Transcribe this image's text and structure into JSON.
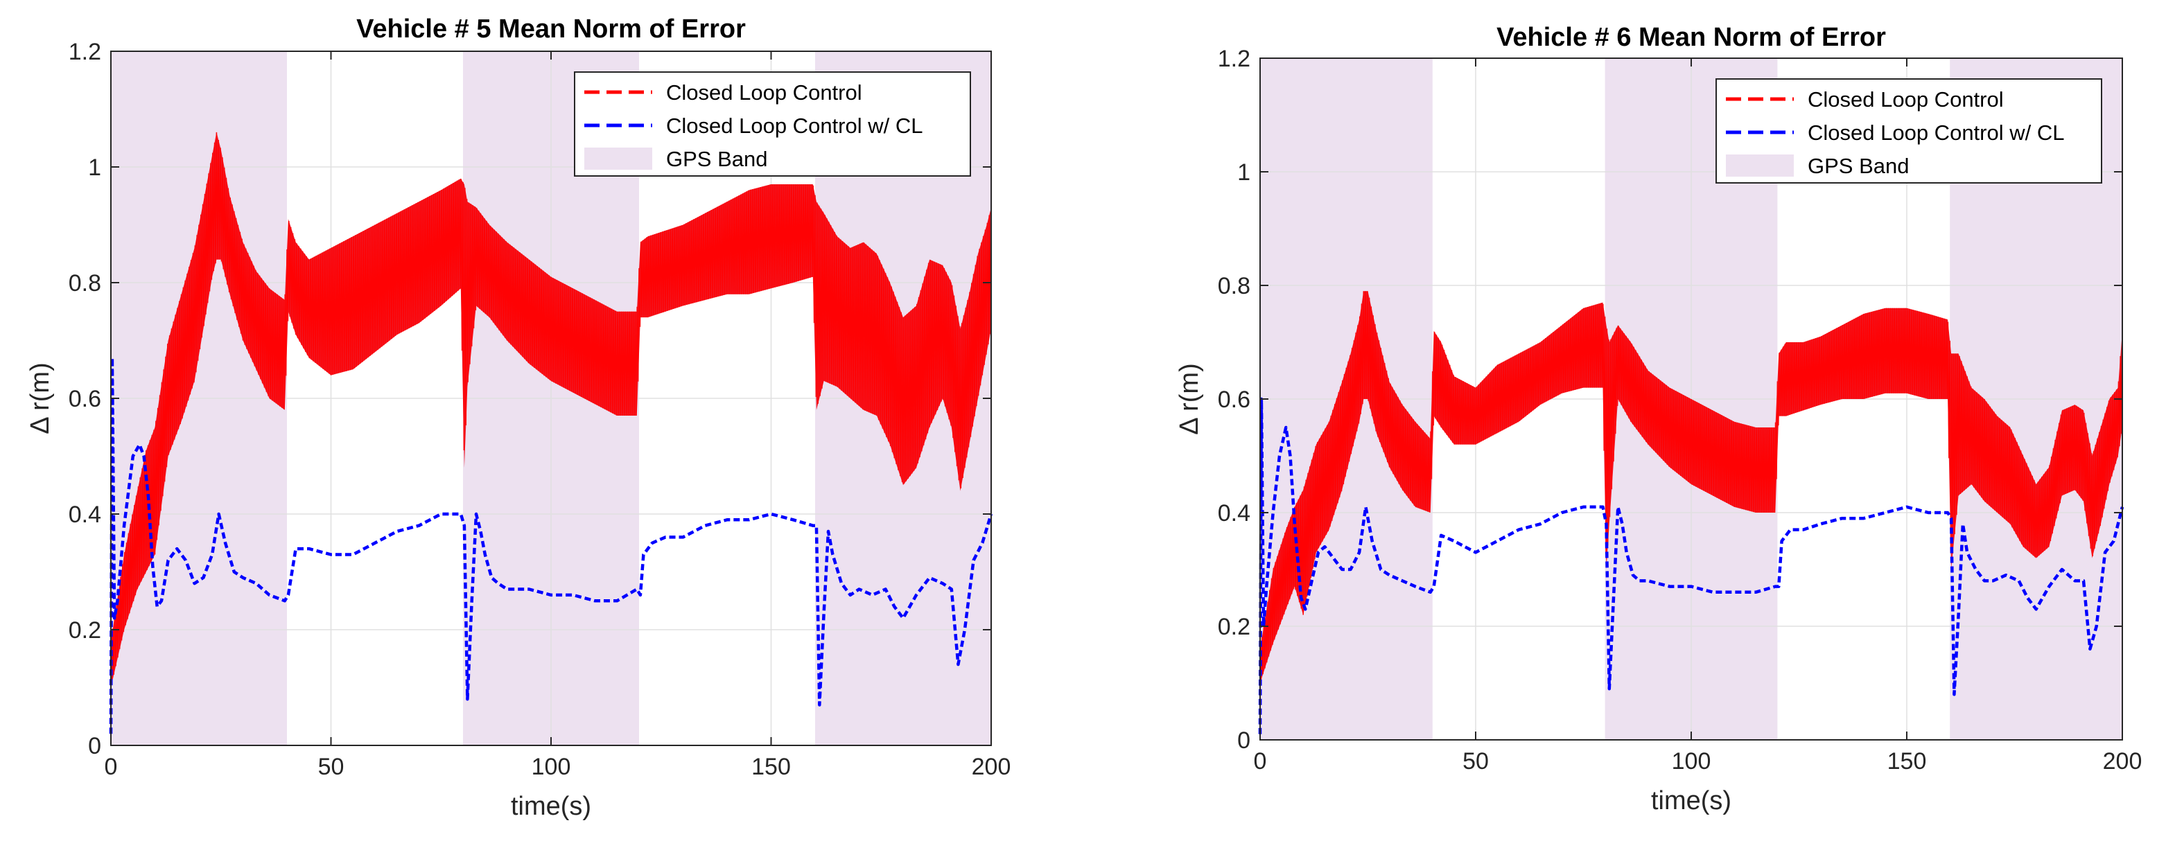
{
  "chart_data": [
    {
      "type": "line",
      "title": "Vehicle # 5 Mean Norm of Error",
      "xlabel": "time(s)",
      "ylabel": "Δ r(m)",
      "xlim": [
        0,
        200
      ],
      "ylim": [
        0,
        1.2
      ],
      "xticks": [
        "0",
        "50",
        "100",
        "150",
        "200"
      ],
      "yticks": [
        "0",
        "0.2",
        "0.4",
        "0.6",
        "0.8",
        "1",
        "1.2"
      ],
      "grid": true,
      "legend_position": "top-right",
      "gps_bands": [
        [
          0,
          40
        ],
        [
          80,
          120
        ],
        [
          160,
          200
        ]
      ],
      "legend": [
        "Closed Loop Control",
        "Closed Loop Control w/ CL",
        "GPS Band"
      ],
      "series": [
        {
          "name": "Closed Loop Control",
          "color": "#ff0000",
          "x": [
            0,
            3,
            6,
            8,
            10,
            13,
            16,
            19,
            21,
            23,
            24,
            25,
            27,
            30,
            33,
            36,
            39.5,
            40.3,
            42,
            45,
            50,
            55,
            60,
            65,
            70,
            75,
            79.5,
            80.3,
            81,
            83,
            86,
            90,
            95,
            100,
            105,
            110,
            115,
            119.5,
            120.3,
            122,
            126,
            130,
            135,
            140,
            145,
            150,
            155,
            159.5,
            160.3,
            162,
            165,
            168,
            171,
            174,
            177,
            180,
            183,
            186,
            189,
            191,
            193,
            195,
            197,
            199,
            200
          ],
          "upper": [
            0.18,
            0.33,
            0.44,
            0.51,
            0.55,
            0.7,
            0.78,
            0.86,
            0.94,
            1.02,
            1.06,
            1.03,
            0.95,
            0.87,
            0.82,
            0.79,
            0.77,
            0.91,
            0.87,
            0.84,
            0.86,
            0.88,
            0.9,
            0.92,
            0.94,
            0.96,
            0.98,
            0.97,
            0.94,
            0.93,
            0.9,
            0.87,
            0.84,
            0.81,
            0.79,
            0.77,
            0.75,
            0.75,
            0.87,
            0.88,
            0.89,
            0.9,
            0.92,
            0.94,
            0.96,
            0.97,
            0.97,
            0.97,
            0.94,
            0.92,
            0.88,
            0.86,
            0.87,
            0.85,
            0.8,
            0.74,
            0.76,
            0.84,
            0.83,
            0.8,
            0.72,
            0.78,
            0.85,
            0.9,
            0.93
          ],
          "lower": [
            0.1,
            0.2,
            0.27,
            0.3,
            0.33,
            0.5,
            0.56,
            0.63,
            0.72,
            0.81,
            0.84,
            0.84,
            0.78,
            0.7,
            0.65,
            0.6,
            0.58,
            0.75,
            0.71,
            0.67,
            0.64,
            0.65,
            0.68,
            0.71,
            0.73,
            0.76,
            0.79,
            0.48,
            0.62,
            0.76,
            0.74,
            0.7,
            0.66,
            0.63,
            0.61,
            0.59,
            0.57,
            0.57,
            0.74,
            0.74,
            0.75,
            0.76,
            0.77,
            0.78,
            0.78,
            0.79,
            0.8,
            0.81,
            0.58,
            0.63,
            0.62,
            0.6,
            0.58,
            0.57,
            0.52,
            0.45,
            0.48,
            0.55,
            0.6,
            0.55,
            0.44,
            0.52,
            0.6,
            0.68,
            0.72
          ]
        },
        {
          "name": "Closed Loop Control w/ CL",
          "color": "#0000ff",
          "x": [
            0,
            0.3,
            0.8,
            1.5,
            3,
            5,
            6.5,
            7.5,
            8.5,
            9.5,
            10.5,
            11.5,
            13,
            15,
            17,
            19,
            21,
            23,
            24.5,
            26,
            28,
            30,
            33,
            36,
            39.5,
            40.3,
            42,
            45,
            50,
            55,
            60,
            65,
            70,
            75,
            79.5,
            80.3,
            81,
            82,
            83,
            84,
            85,
            86.5,
            88,
            90,
            95,
            100,
            105,
            110,
            115,
            119.5,
            120.3,
            121,
            123,
            126,
            130,
            135,
            140,
            145,
            150,
            155,
            159.5,
            160.3,
            161,
            162,
            163,
            164,
            166,
            168,
            170,
            173,
            176,
            178,
            180,
            183,
            186,
            189,
            191,
            192.5,
            194,
            196,
            198,
            200
          ],
          "y": [
            0.02,
            0.67,
            0.22,
            0.25,
            0.38,
            0.5,
            0.52,
            0.5,
            0.43,
            0.31,
            0.24,
            0.25,
            0.32,
            0.34,
            0.32,
            0.28,
            0.29,
            0.33,
            0.4,
            0.35,
            0.3,
            0.29,
            0.28,
            0.26,
            0.25,
            0.26,
            0.34,
            0.34,
            0.33,
            0.33,
            0.35,
            0.37,
            0.38,
            0.4,
            0.4,
            0.38,
            0.08,
            0.25,
            0.4,
            0.37,
            0.33,
            0.29,
            0.28,
            0.27,
            0.27,
            0.26,
            0.26,
            0.25,
            0.25,
            0.27,
            0.26,
            0.33,
            0.35,
            0.36,
            0.36,
            0.38,
            0.39,
            0.39,
            0.4,
            0.39,
            0.38,
            0.38,
            0.07,
            0.23,
            0.37,
            0.33,
            0.28,
            0.26,
            0.27,
            0.26,
            0.27,
            0.24,
            0.22,
            0.26,
            0.29,
            0.28,
            0.27,
            0.14,
            0.2,
            0.32,
            0.35,
            0.4
          ]
        }
      ]
    },
    {
      "type": "line",
      "title": "Vehicle # 6 Mean Norm of Error",
      "xlabel": "time(s)",
      "ylabel": "Δ r(m)",
      "xlim": [
        0,
        200
      ],
      "ylim": [
        0,
        1.2
      ],
      "xticks": [
        "0",
        "50",
        "100",
        "150",
        "200"
      ],
      "yticks": [
        "0",
        "0.2",
        "0.4",
        "0.6",
        "0.8",
        "1",
        "1.2"
      ],
      "grid": true,
      "legend_position": "top-right",
      "gps_bands": [
        [
          0,
          40
        ],
        [
          80,
          120
        ],
        [
          160,
          200
        ]
      ],
      "legend": [
        "Closed Loop Control",
        "Closed Loop Control w/ CL",
        "GPS Band"
      ],
      "series": [
        {
          "name": "Closed Loop Control",
          "color": "#ff0000",
          "x": [
            0,
            3,
            6,
            8,
            10,
            13,
            16,
            19,
            21,
            23,
            24,
            25,
            27,
            30,
            33,
            36,
            39.5,
            40.3,
            42,
            45,
            50,
            55,
            60,
            65,
            70,
            75,
            79.5,
            80.3,
            81,
            83,
            86,
            90,
            95,
            100,
            105,
            110,
            115,
            119.5,
            120.3,
            122,
            126,
            130,
            135,
            140,
            145,
            150,
            155,
            159.5,
            160.3,
            162,
            165,
            168,
            171,
            174,
            177,
            180,
            183,
            186,
            189,
            191,
            193,
            195,
            197,
            199,
            200
          ],
          "upper": [
            0.16,
            0.3,
            0.37,
            0.41,
            0.44,
            0.52,
            0.56,
            0.63,
            0.68,
            0.74,
            0.79,
            0.79,
            0.72,
            0.63,
            0.59,
            0.56,
            0.53,
            0.72,
            0.7,
            0.64,
            0.62,
            0.66,
            0.68,
            0.7,
            0.73,
            0.76,
            0.77,
            0.73,
            0.7,
            0.73,
            0.7,
            0.65,
            0.62,
            0.6,
            0.58,
            0.56,
            0.55,
            0.55,
            0.68,
            0.7,
            0.7,
            0.71,
            0.73,
            0.75,
            0.76,
            0.76,
            0.75,
            0.74,
            0.68,
            0.68,
            0.62,
            0.6,
            0.57,
            0.55,
            0.5,
            0.45,
            0.48,
            0.58,
            0.59,
            0.58,
            0.5,
            0.55,
            0.6,
            0.62,
            0.72
          ],
          "lower": [
            0.1,
            0.17,
            0.23,
            0.27,
            0.22,
            0.33,
            0.37,
            0.44,
            0.5,
            0.56,
            0.6,
            0.6,
            0.54,
            0.48,
            0.44,
            0.41,
            0.4,
            0.57,
            0.55,
            0.52,
            0.52,
            0.54,
            0.56,
            0.59,
            0.61,
            0.62,
            0.62,
            0.3,
            0.38,
            0.6,
            0.56,
            0.52,
            0.48,
            0.45,
            0.43,
            0.41,
            0.4,
            0.4,
            0.57,
            0.57,
            0.58,
            0.59,
            0.6,
            0.6,
            0.61,
            0.61,
            0.6,
            0.6,
            0.3,
            0.43,
            0.45,
            0.42,
            0.4,
            0.38,
            0.34,
            0.32,
            0.34,
            0.43,
            0.44,
            0.42,
            0.32,
            0.38,
            0.45,
            0.5,
            0.55
          ]
        },
        {
          "name": "Closed Loop Control w/ CL",
          "color": "#0000ff",
          "x": [
            0,
            0.3,
            0.8,
            1.5,
            3,
            4.5,
            6,
            7,
            8,
            9.5,
            10.5,
            12,
            13.5,
            15,
            17,
            19,
            21,
            23,
            24.5,
            26,
            28,
            30,
            33,
            36,
            39.5,
            40.3,
            42,
            45,
            50,
            55,
            60,
            65,
            70,
            75,
            79.5,
            80.3,
            81,
            82,
            83,
            84,
            85,
            86.5,
            88,
            90,
            95,
            100,
            105,
            110,
            115,
            119.5,
            120.3,
            121,
            123,
            126,
            130,
            135,
            140,
            145,
            150,
            155,
            159.5,
            160.3,
            161,
            162,
            163,
            164,
            166,
            168,
            170,
            173,
            176,
            178,
            180,
            183,
            186,
            189,
            191,
            192.5,
            194,
            196,
            198,
            200
          ],
          "y": [
            0.01,
            0.6,
            0.2,
            0.27,
            0.4,
            0.5,
            0.55,
            0.5,
            0.38,
            0.25,
            0.23,
            0.28,
            0.33,
            0.34,
            0.32,
            0.3,
            0.3,
            0.33,
            0.41,
            0.35,
            0.3,
            0.29,
            0.28,
            0.27,
            0.26,
            0.27,
            0.36,
            0.35,
            0.33,
            0.35,
            0.37,
            0.38,
            0.4,
            0.41,
            0.41,
            0.38,
            0.09,
            0.25,
            0.41,
            0.38,
            0.33,
            0.29,
            0.28,
            0.28,
            0.27,
            0.27,
            0.26,
            0.26,
            0.26,
            0.27,
            0.27,
            0.35,
            0.37,
            0.37,
            0.38,
            0.39,
            0.39,
            0.4,
            0.41,
            0.4,
            0.4,
            0.39,
            0.08,
            0.22,
            0.38,
            0.33,
            0.3,
            0.28,
            0.28,
            0.29,
            0.28,
            0.25,
            0.23,
            0.27,
            0.3,
            0.28,
            0.28,
            0.16,
            0.2,
            0.33,
            0.35,
            0.41
          ]
        }
      ]
    }
  ],
  "colors": {
    "gps_band": "#ede1f0",
    "closed_loop": "#ff0000",
    "closed_loop_fill": "#ee1c2b",
    "closed_loop_cl": "#0000ff",
    "grid": "#e0e0e0",
    "axis": "#262626"
  }
}
